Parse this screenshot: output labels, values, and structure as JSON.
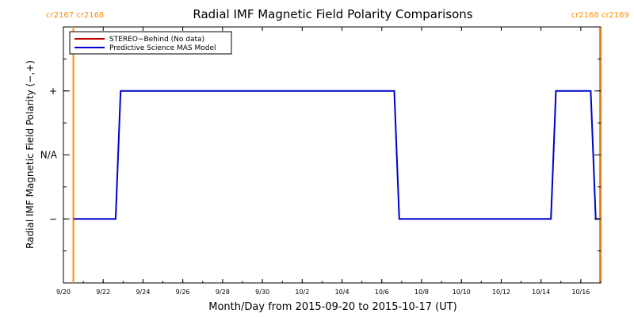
{
  "chart_data": {
    "type": "line",
    "title": "Radial IMF Magnetic Field Polarity Comparisons",
    "xlabel": "Month/Day from 2015-09-20 to 2015-10-17 (UT)",
    "ylabel": "Radial IMF Magnetic Field Polarity (−,+)",
    "x_ticks": [
      "9/20",
      "9/22",
      "9/24",
      "9/26",
      "9/28",
      "9/30",
      "10/2",
      "10/4",
      "10/6",
      "10/8",
      "10/10",
      "10/12",
      "10/14",
      "10/16"
    ],
    "xlim": [
      "2015-09-20",
      "2015-10-17"
    ],
    "y_ticks": [
      {
        "value": 1,
        "label": "+"
      },
      {
        "value": 0,
        "label": "N/A"
      },
      {
        "value": -1,
        "label": "−"
      }
    ],
    "ylim": [
      -2,
      2
    ],
    "legend": {
      "position": "top-left",
      "entries": [
        {
          "label": "STEREO−Behind (No data)",
          "color": "#c00000"
        },
        {
          "label": "Predictive Science MAS Model",
          "color": "#0000cc"
        }
      ]
    },
    "series": [
      {
        "name": "Predictive Science MAS Model",
        "color": "#0000cc",
        "points": [
          [
            "2015-09-20T12:00",
            -1
          ],
          [
            "2015-09-22T15:00",
            -1
          ],
          [
            "2015-09-22T21:00",
            1
          ],
          [
            "2015-10-06T15:00",
            1
          ],
          [
            "2015-10-06T21:00",
            -1
          ],
          [
            "2015-10-14T12:00",
            -1
          ],
          [
            "2015-10-14T18:00",
            1
          ],
          [
            "2015-10-16T12:00",
            1
          ],
          [
            "2015-10-16T18:00",
            -1
          ],
          [
            "2015-10-16T22:00",
            -1
          ]
        ]
      }
    ],
    "carrington_markers": [
      {
        "date": "2015-09-20T12:00",
        "labels": [
          "cr2167",
          "cr2168"
        ],
        "side": "left",
        "color": "#ff8c00"
      },
      {
        "date": "2015-10-16T23:00",
        "labels": [
          "cr2168",
          "cr2169"
        ],
        "side": "right",
        "color": "#ff8c00"
      }
    ]
  }
}
